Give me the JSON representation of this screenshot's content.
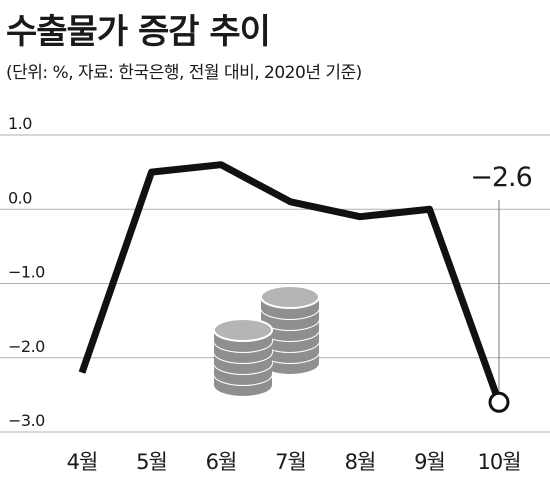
{
  "header": {
    "title": "수출물가 증감 추이",
    "subtitle": "(단위: %, 자료: 한국은행, 전월 대비, 2020년 기준)"
  },
  "chart_data": {
    "type": "line",
    "categories": [
      "4월",
      "5월",
      "6월",
      "7월",
      "8월",
      "9월",
      "10월"
    ],
    "series": [
      {
        "values": [
          -2.2,
          0.5,
          0.6,
          0.1,
          -0.1,
          0.0,
          -2.6
        ]
      }
    ],
    "yticks": [
      1.0,
      0.0,
      -1.0,
      -2.0,
      -3.0
    ],
    "ytick_labels": [
      "1.0",
      "0.0",
      "−1.0",
      "−2.0",
      "−3.0"
    ],
    "ylim": [
      -3.0,
      1.0
    ],
    "grid": "horizontal",
    "callout": {
      "label": "−2.6",
      "category": "10월",
      "value": -2.6
    },
    "colors": {
      "line": "#111111",
      "grid": "#b0b0b0",
      "coin": "#b5b5b5",
      "coin_dark": "#8f8f8f"
    },
    "decoration": "coin-stacks-icon"
  }
}
